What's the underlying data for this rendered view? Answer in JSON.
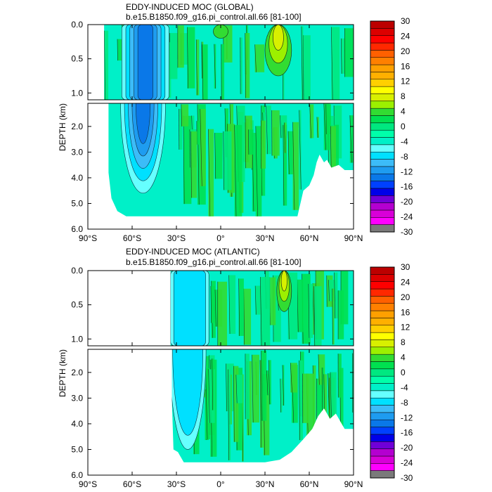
{
  "chart_data": [
    {
      "type": "heatmap",
      "title": "EDDY-INDUCED MOC (GLOBAL)",
      "subtitle": "b.e15.B1850.f09_g16.pi_control.all.66 [81-100]",
      "xlabel": "",
      "ylabel": "DEPTH (km)",
      "x_ticks": [
        "90°S",
        "60°S",
        "30°S",
        "0°",
        "30°N",
        "60°N",
        "90°N"
      ],
      "x_tick_values": [
        -90,
        -60,
        -30,
        0,
        30,
        60,
        90
      ],
      "y_ticks_upper": [
        "0.0",
        "0.5",
        "1.0"
      ],
      "y_ticks_upper_values": [
        0,
        0.5,
        1.0
      ],
      "y_ticks_lower": [
        "2.0",
        "3.0",
        "4.0",
        "5.0",
        "6.0"
      ],
      "y_ticks_lower_values": [
        2,
        3,
        4,
        5,
        6
      ],
      "xlim": [
        -90,
        90
      ],
      "ylim_upper": [
        0,
        1.1
      ],
      "ylim_lower": [
        1.1,
        6.0
      ],
      "bottom_profile": [
        [
          -76,
          3.8
        ],
        [
          -74,
          4.8
        ],
        [
          -70,
          5.3
        ],
        [
          -64,
          5.5
        ],
        [
          -40,
          5.5
        ],
        [
          0,
          5.5
        ],
        [
          25,
          5.5
        ],
        [
          42,
          5.5
        ],
        [
          52,
          5.5
        ],
        [
          54,
          5.0
        ],
        [
          56,
          4.5
        ],
        [
          60,
          4.3
        ],
        [
          63,
          3.9
        ],
        [
          65,
          3.4
        ],
        [
          67,
          3.1
        ],
        [
          70,
          3.4
        ],
        [
          72,
          3.3
        ],
        [
          75,
          3.6
        ],
        [
          80,
          3.5
        ],
        [
          84,
          3.7
        ],
        [
          90,
          3.7
        ]
      ],
      "upper_start_lat": -79,
      "features": [
        {
          "name": "southern-ocean-negative-cell",
          "lat_range": [
            -67,
            -35
          ],
          "depth_range": [
            0.0,
            4.6
          ],
          "min_value": -13
        },
        {
          "name": "northern-positive-cell",
          "lat_range": [
            30,
            48
          ],
          "depth_range": [
            0.0,
            0.75
          ],
          "max_value": 6
        },
        {
          "name": "equatorial-positive",
          "lat_range": [
            -5,
            5
          ],
          "depth_range": [
            0.0,
            0.2
          ],
          "max_value": 4
        }
      ]
    },
    {
      "type": "heatmap",
      "title": "EDDY-INDUCED MOC (ATLANTIC)",
      "subtitle": "b.e15.B1850.f09_g16.pi_control.all.66 [81-100]",
      "xlabel": "",
      "ylabel": "DEPTH (km)",
      "x_ticks": [
        "90°S",
        "60°S",
        "30°S",
        "0°",
        "30°N",
        "60°N",
        "90°N"
      ],
      "x_tick_values": [
        -90,
        -60,
        -30,
        0,
        30,
        60,
        90
      ],
      "y_ticks_upper": [
        "0.0",
        "0.5",
        "1.0"
      ],
      "y_ticks_upper_values": [
        0,
        0.5,
        1.0
      ],
      "y_ticks_lower": [
        "2.0",
        "3.0",
        "4.0",
        "5.0",
        "6.0"
      ],
      "y_ticks_lower_values": [
        2,
        3,
        4,
        5,
        6
      ],
      "xlim": [
        -90,
        90
      ],
      "ylim_upper": [
        0,
        1.1
      ],
      "ylim_lower": [
        1.1,
        6.0
      ],
      "bottom_profile": [
        [
          -33,
          3.2
        ],
        [
          -32,
          5.0
        ],
        [
          -29,
          5.1
        ],
        [
          -25,
          5.5
        ],
        [
          10,
          5.5
        ],
        [
          30,
          5.5
        ],
        [
          40,
          5.4
        ],
        [
          48,
          5.1
        ],
        [
          56,
          4.6
        ],
        [
          62,
          4.2
        ],
        [
          66,
          3.7
        ],
        [
          70,
          3.4
        ],
        [
          74,
          3.8
        ],
        [
          78,
          3.6
        ],
        [
          84,
          4.2
        ],
        [
          90,
          4.2
        ]
      ],
      "upper_start_lat": -34,
      "features": [
        {
          "name": "northern-positive-cell",
          "lat_range": [
            38,
            48
          ],
          "depth_range": [
            0.0,
            0.6
          ],
          "max_value": 5
        },
        {
          "name": "southern-negative-band",
          "lat_range": [
            -34,
            -8
          ],
          "depth_range": [
            0.0,
            5.0
          ],
          "min_value": -3
        }
      ]
    }
  ],
  "colorbar": {
    "labels": [
      "30",
      "24",
      "20",
      "16",
      "12",
      "8",
      "4",
      "0",
      "-4",
      "-8",
      "-12",
      "-16",
      "-20",
      "-24",
      "-30"
    ],
    "colors": [
      "#b0b0b0",
      "#ff00ff",
      "#d800d8",
      "#b400d0",
      "#7000d8",
      "#0000e8",
      "#0040ff",
      "#0a78e8",
      "#1e9cf0",
      "#3cbcf8",
      "#00e0ff",
      "#66ffff",
      "#00f0c8",
      "#00ffaa",
      "#00e880",
      "#00e050",
      "#32dc32",
      "#9cf000",
      "#d8f000",
      "#ffff00",
      "#ffd000",
      "#ffb000",
      "#ffa000",
      "#ff8000",
      "#ff6000",
      "#ff2800",
      "#ff0000",
      "#dc0000",
      "#bc0000"
    ],
    "extension_colors": [
      "#7a7a7a",
      "#b0b0b0"
    ]
  }
}
